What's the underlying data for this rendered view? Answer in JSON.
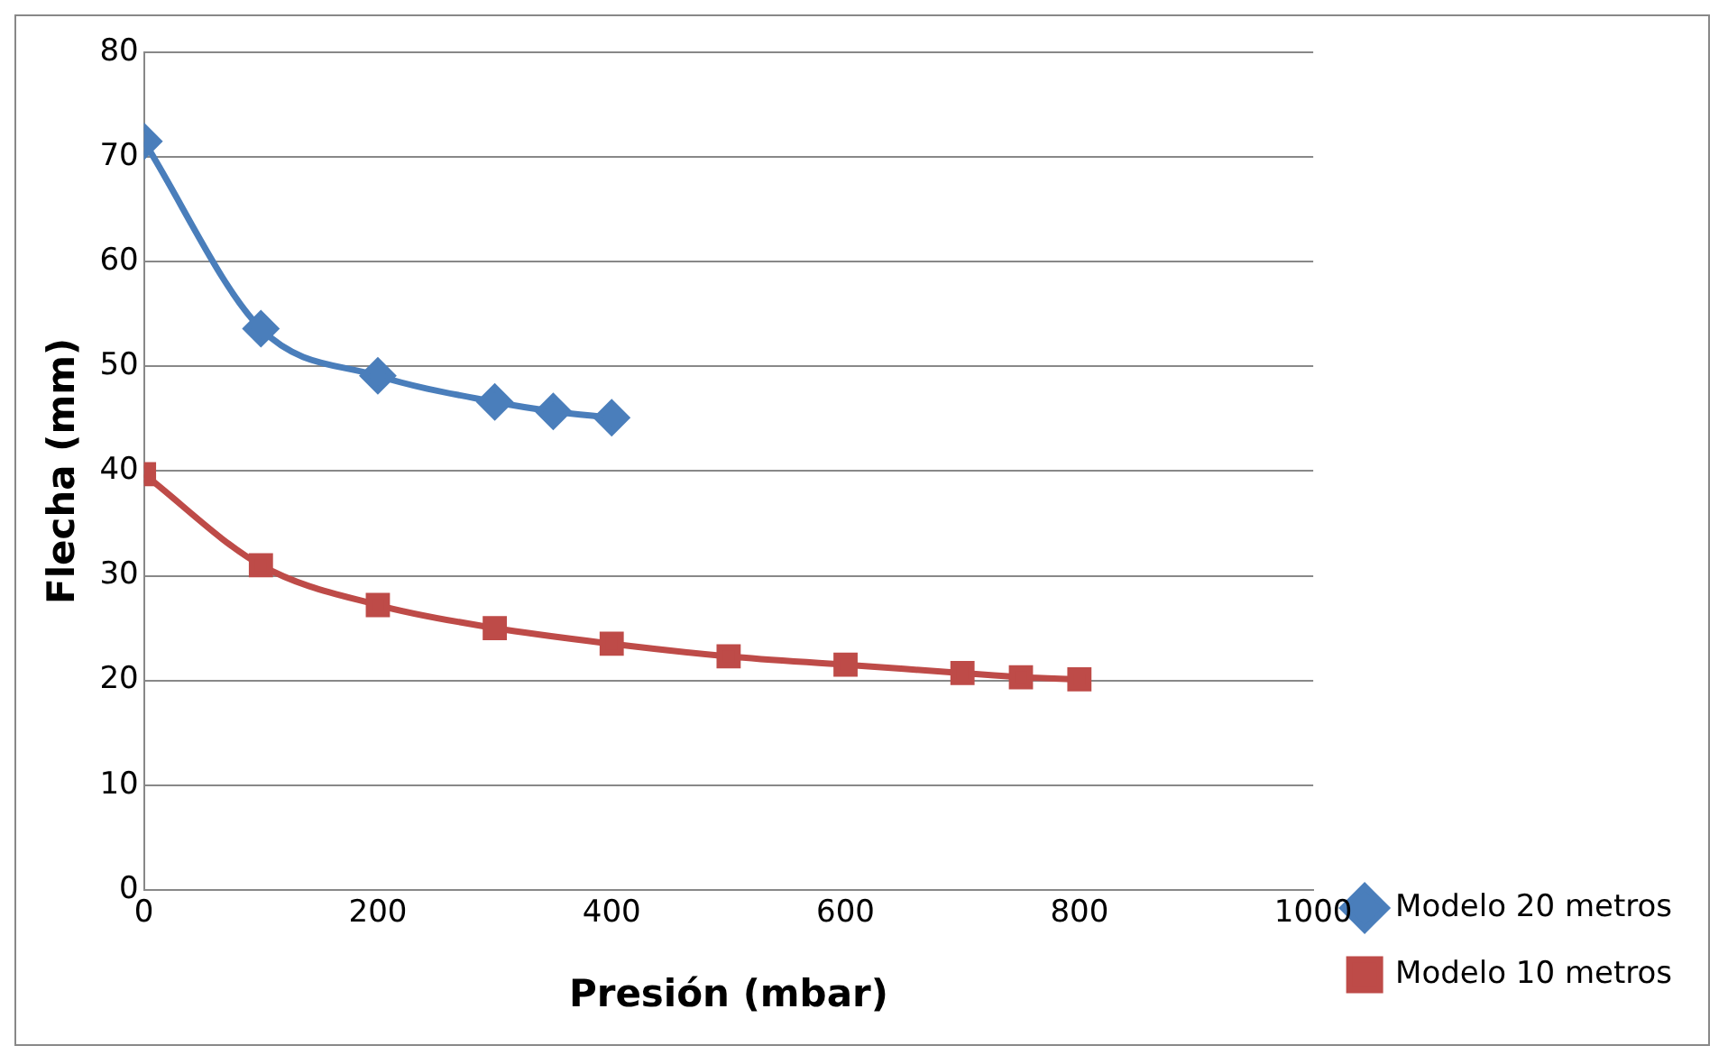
{
  "chart_data": {
    "type": "line",
    "xlabel": "Presión (mbar)",
    "ylabel": "Flecha (mm)",
    "xlim": [
      0,
      1000
    ],
    "xticks": [
      0,
      200,
      400,
      600,
      800,
      1000
    ],
    "ylim": [
      0,
      80
    ],
    "yticks": [
      0,
      10,
      20,
      30,
      40,
      50,
      60,
      70,
      80
    ],
    "grid": "y",
    "legend": "bottom right",
    "series": [
      {
        "name": "Modelo 20 metros",
        "color": "#4a7ebb",
        "marker": "diamond",
        "x": [
          0,
          100,
          200,
          300,
          350,
          400
        ],
        "values": [
          71.5,
          53.6,
          49.1,
          46.6,
          45.7,
          45.1
        ]
      },
      {
        "name": "Modelo 10 metros",
        "color": "#be4b48",
        "marker": "square",
        "x": [
          0,
          100,
          200,
          300,
          400,
          500,
          600,
          700,
          750,
          800
        ],
        "values": [
          39.7,
          31.0,
          27.2,
          25.0,
          23.5,
          22.3,
          21.5,
          20.7,
          20.3,
          20.1
        ]
      }
    ]
  }
}
